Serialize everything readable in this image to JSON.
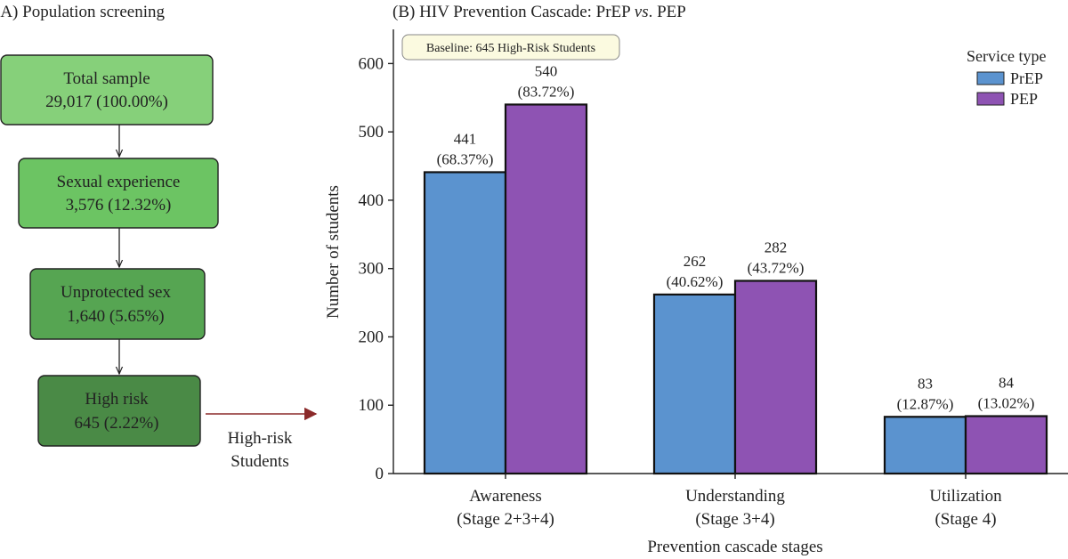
{
  "panel_a": {
    "title": "(A) Population screening",
    "boxes": [
      {
        "line1": "Total sample",
        "line2": "29,017 (100.00%)",
        "fill": "#86d07a"
      },
      {
        "line1": "Sexual experience",
        "line2": "3,576 (12.32%)",
        "fill": "#6cc463"
      },
      {
        "line1": "Unprotected sex",
        "line2": "1,640 (5.65%)",
        "fill": "#56a552"
      },
      {
        "line1": "High risk",
        "line2": "645 (2.22%)",
        "fill": "#4a8a46"
      }
    ],
    "arrow_label_line1": "High-risk",
    "arrow_label_line2": "Students",
    "arrow_color": "#8b2a2a"
  },
  "chart_data": {
    "type": "bar",
    "title_prefix": "(B) HIV Prevention Cascade: PrEP ",
    "title_italic": "vs",
    "title_suffix": ". PEP",
    "categories": [
      {
        "line1": "Awareness",
        "line2": "(Stage 2+3+4)"
      },
      {
        "line1": "Understanding",
        "line2": "(Stage 3+4)"
      },
      {
        "line1": "Utilization",
        "line2": "(Stage 4)"
      }
    ],
    "series": [
      {
        "name": "PrEP",
        "color": "#5b93cf",
        "values": [
          441,
          262,
          83
        ],
        "pct": [
          "(68.37%)",
          "(40.62%)",
          "(12.87%)"
        ]
      },
      {
        "name": "PEP",
        "color": "#8e53b3",
        "values": [
          540,
          282,
          84
        ],
        "pct": [
          "(83.72%)",
          "(43.72%)",
          "(13.02%)"
        ]
      }
    ],
    "xlabel": "Prevention cascade stages",
    "ylabel": "Number of students",
    "ylim": [
      0,
      650
    ],
    "yticks": [
      0,
      100,
      200,
      300,
      400,
      500,
      600
    ],
    "legend_title": "Service type",
    "legend_position": "top-right",
    "annotation": "Baseline: 645 High-Risk Students",
    "grid": false
  }
}
